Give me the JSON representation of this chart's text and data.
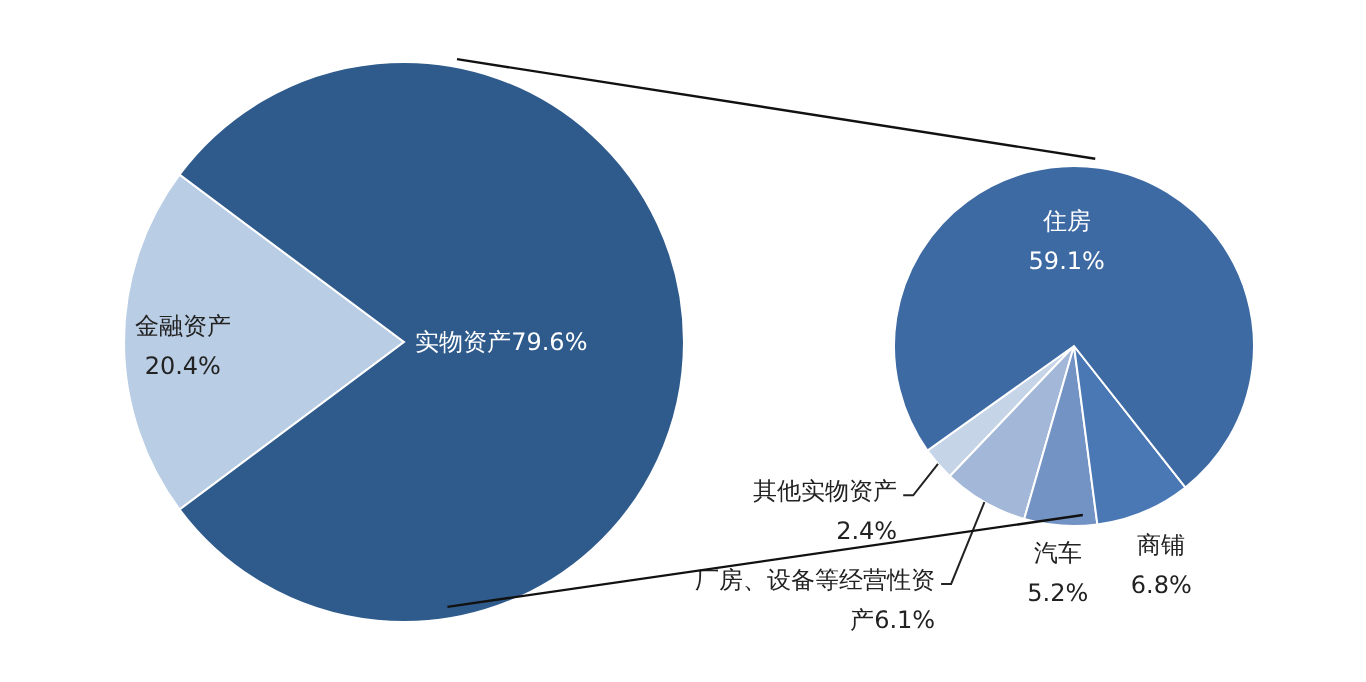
{
  "chart_data": [
    {
      "type": "pie",
      "categories": [
        "金融资产",
        "实物资产"
      ],
      "values": [
        20.4,
        79.6
      ],
      "colors": [
        "#b9cde5",
        "#2f5b8c"
      ],
      "value_labels": [
        "20.4%",
        "79.6%"
      ],
      "legend": false
    },
    {
      "type": "pie",
      "categories": [
        "其他实物资产",
        "厂房、设备等经营性资产",
        "汽车",
        "商铺",
        "住房"
      ],
      "values": [
        2.4,
        6.1,
        5.2,
        6.8,
        59.1
      ],
      "colors": [
        "#c6d4e8",
        "#a3b8d8",
        "#7393c4",
        "#4a78b4",
        "#3d6aa3"
      ],
      "value_labels": [
        "2.4%",
        "6.1%",
        "5.2%",
        "6.8%",
        "59.1%"
      ],
      "legend": false
    }
  ]
}
